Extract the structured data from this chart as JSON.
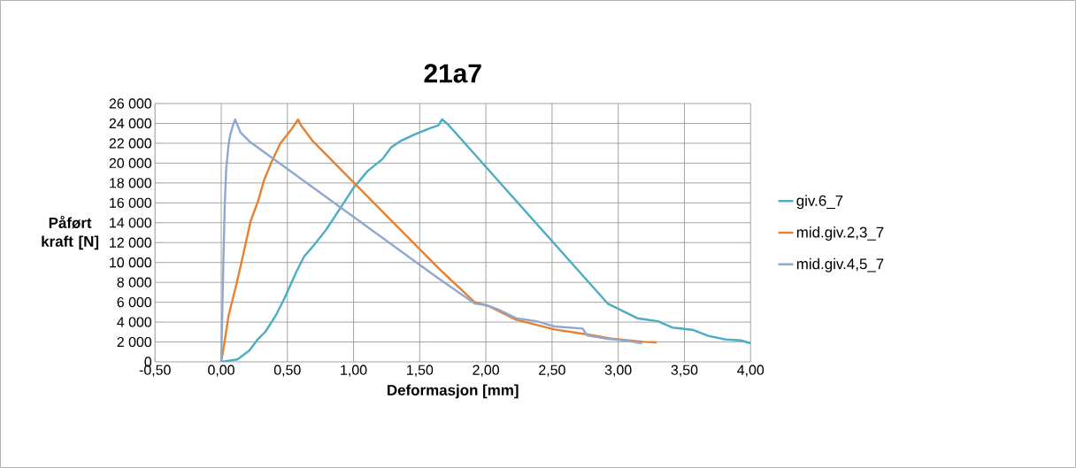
{
  "chart_data": {
    "type": "line",
    "title": "21a7",
    "xlabel": "Deformasjon [mm]",
    "ylabel": "Påført kraft [N]",
    "xlim": [
      -0.5,
      4.0
    ],
    "xticks": [
      {
        "value": -0.5,
        "label": "-0,50"
      },
      {
        "value": 0,
        "label": "0,00"
      },
      {
        "value": 0.5,
        "label": "0,50"
      },
      {
        "value": 1.0,
        "label": "1,00"
      },
      {
        "value": 1.5,
        "label": "1,50"
      },
      {
        "value": 2.0,
        "label": "2,00"
      },
      {
        "value": 2.5,
        "label": "2,50"
      },
      {
        "value": 3.0,
        "label": "3,00"
      },
      {
        "value": 3.5,
        "label": "3,50"
      },
      {
        "value": 4.0,
        "label": "4,00"
      }
    ],
    "ylim": [
      0,
      26000
    ],
    "yticks": [
      0,
      {
        "value": 2000,
        "label": "2 000"
      },
      {
        "value": 4000,
        "label": "4 000"
      },
      {
        "value": 6000,
        "label": "6 000"
      },
      {
        "value": 8000,
        "label": "8 000"
      },
      {
        "value": 10000,
        "label": "10 000"
      },
      {
        "value": 12000,
        "label": "12 000"
      },
      {
        "value": 14000,
        "label": "14 000"
      },
      {
        "value": 16000,
        "label": "16 000"
      },
      {
        "value": 18000,
        "label": "18 000"
      },
      {
        "value": 20000,
        "label": "20 000"
      },
      {
        "value": 22000,
        "label": "22 000"
      },
      {
        "value": 24000,
        "label": "24 000"
      },
      {
        "value": 26000,
        "label": "26 000"
      }
    ],
    "grid": true,
    "legend": "right",
    "marker": "none",
    "line_style": "solid",
    "series": [
      {
        "name": "giv.6_7",
        "color": "#4bacc6",
        "x": [
          0,
          0.123,
          0.212,
          0.279,
          0.335,
          0.413,
          0.48,
          0.57,
          0.626,
          0.704,
          0.793,
          0.882,
          0.994,
          1.106,
          1.218,
          1.285,
          1.352,
          1.463,
          1.575,
          1.642,
          1.669,
          1.714,
          2.92,
          3.032,
          3.144,
          3.3,
          3.412,
          3.568,
          3.68,
          3.814,
          3.926,
          4.0
        ],
        "values": [
          0,
          240,
          1130,
          2310,
          3050,
          4680,
          6460,
          9130,
          10600,
          11800,
          13300,
          15100,
          17400,
          19200,
          20400,
          21600,
          22200,
          22900,
          23500,
          23800,
          24400,
          23900,
          5870,
          5130,
          4390,
          4090,
          3440,
          3200,
          2610,
          2250,
          2160,
          1870
        ]
      },
      {
        "name": "mid.giv.2,3_7",
        "color": "#e8802f",
        "x": [
          0,
          0.022,
          0.056,
          0.112,
          0.168,
          0.223,
          0.279,
          0.324,
          0.38,
          0.447,
          0.525,
          0.581,
          0.603,
          0.693,
          1.642,
          1.915,
          2.027,
          2.228,
          2.518,
          2.764,
          2.965,
          3.189,
          3.29
        ],
        "values": [
          0,
          1720,
          4680,
          7640,
          10900,
          14200,
          16200,
          18300,
          20100,
          22000,
          23300,
          24400,
          23800,
          22200,
          9420,
          6010,
          5570,
          4240,
          3260,
          2760,
          2310,
          2010,
          1960
        ]
      },
      {
        "name": "mid.giv.4,5_7",
        "color": "#8fa8d2",
        "x": [
          0,
          0.007,
          0.016,
          0.027,
          0.038,
          0.056,
          0.069,
          0.089,
          0.105,
          0.145,
          0.212,
          1.642,
          1.915,
          2.004,
          2.094,
          2.228,
          2.384,
          2.518,
          2.731,
          2.764,
          2.92,
          3.05,
          3.18
        ],
        "values": [
          0,
          4100,
          10000,
          15900,
          19500,
          21900,
          22900,
          23800,
          24400,
          23100,
          22200,
          8390,
          5870,
          5720,
          5270,
          4390,
          4090,
          3560,
          3350,
          2670,
          2310,
          2160,
          1870
        ]
      }
    ]
  }
}
